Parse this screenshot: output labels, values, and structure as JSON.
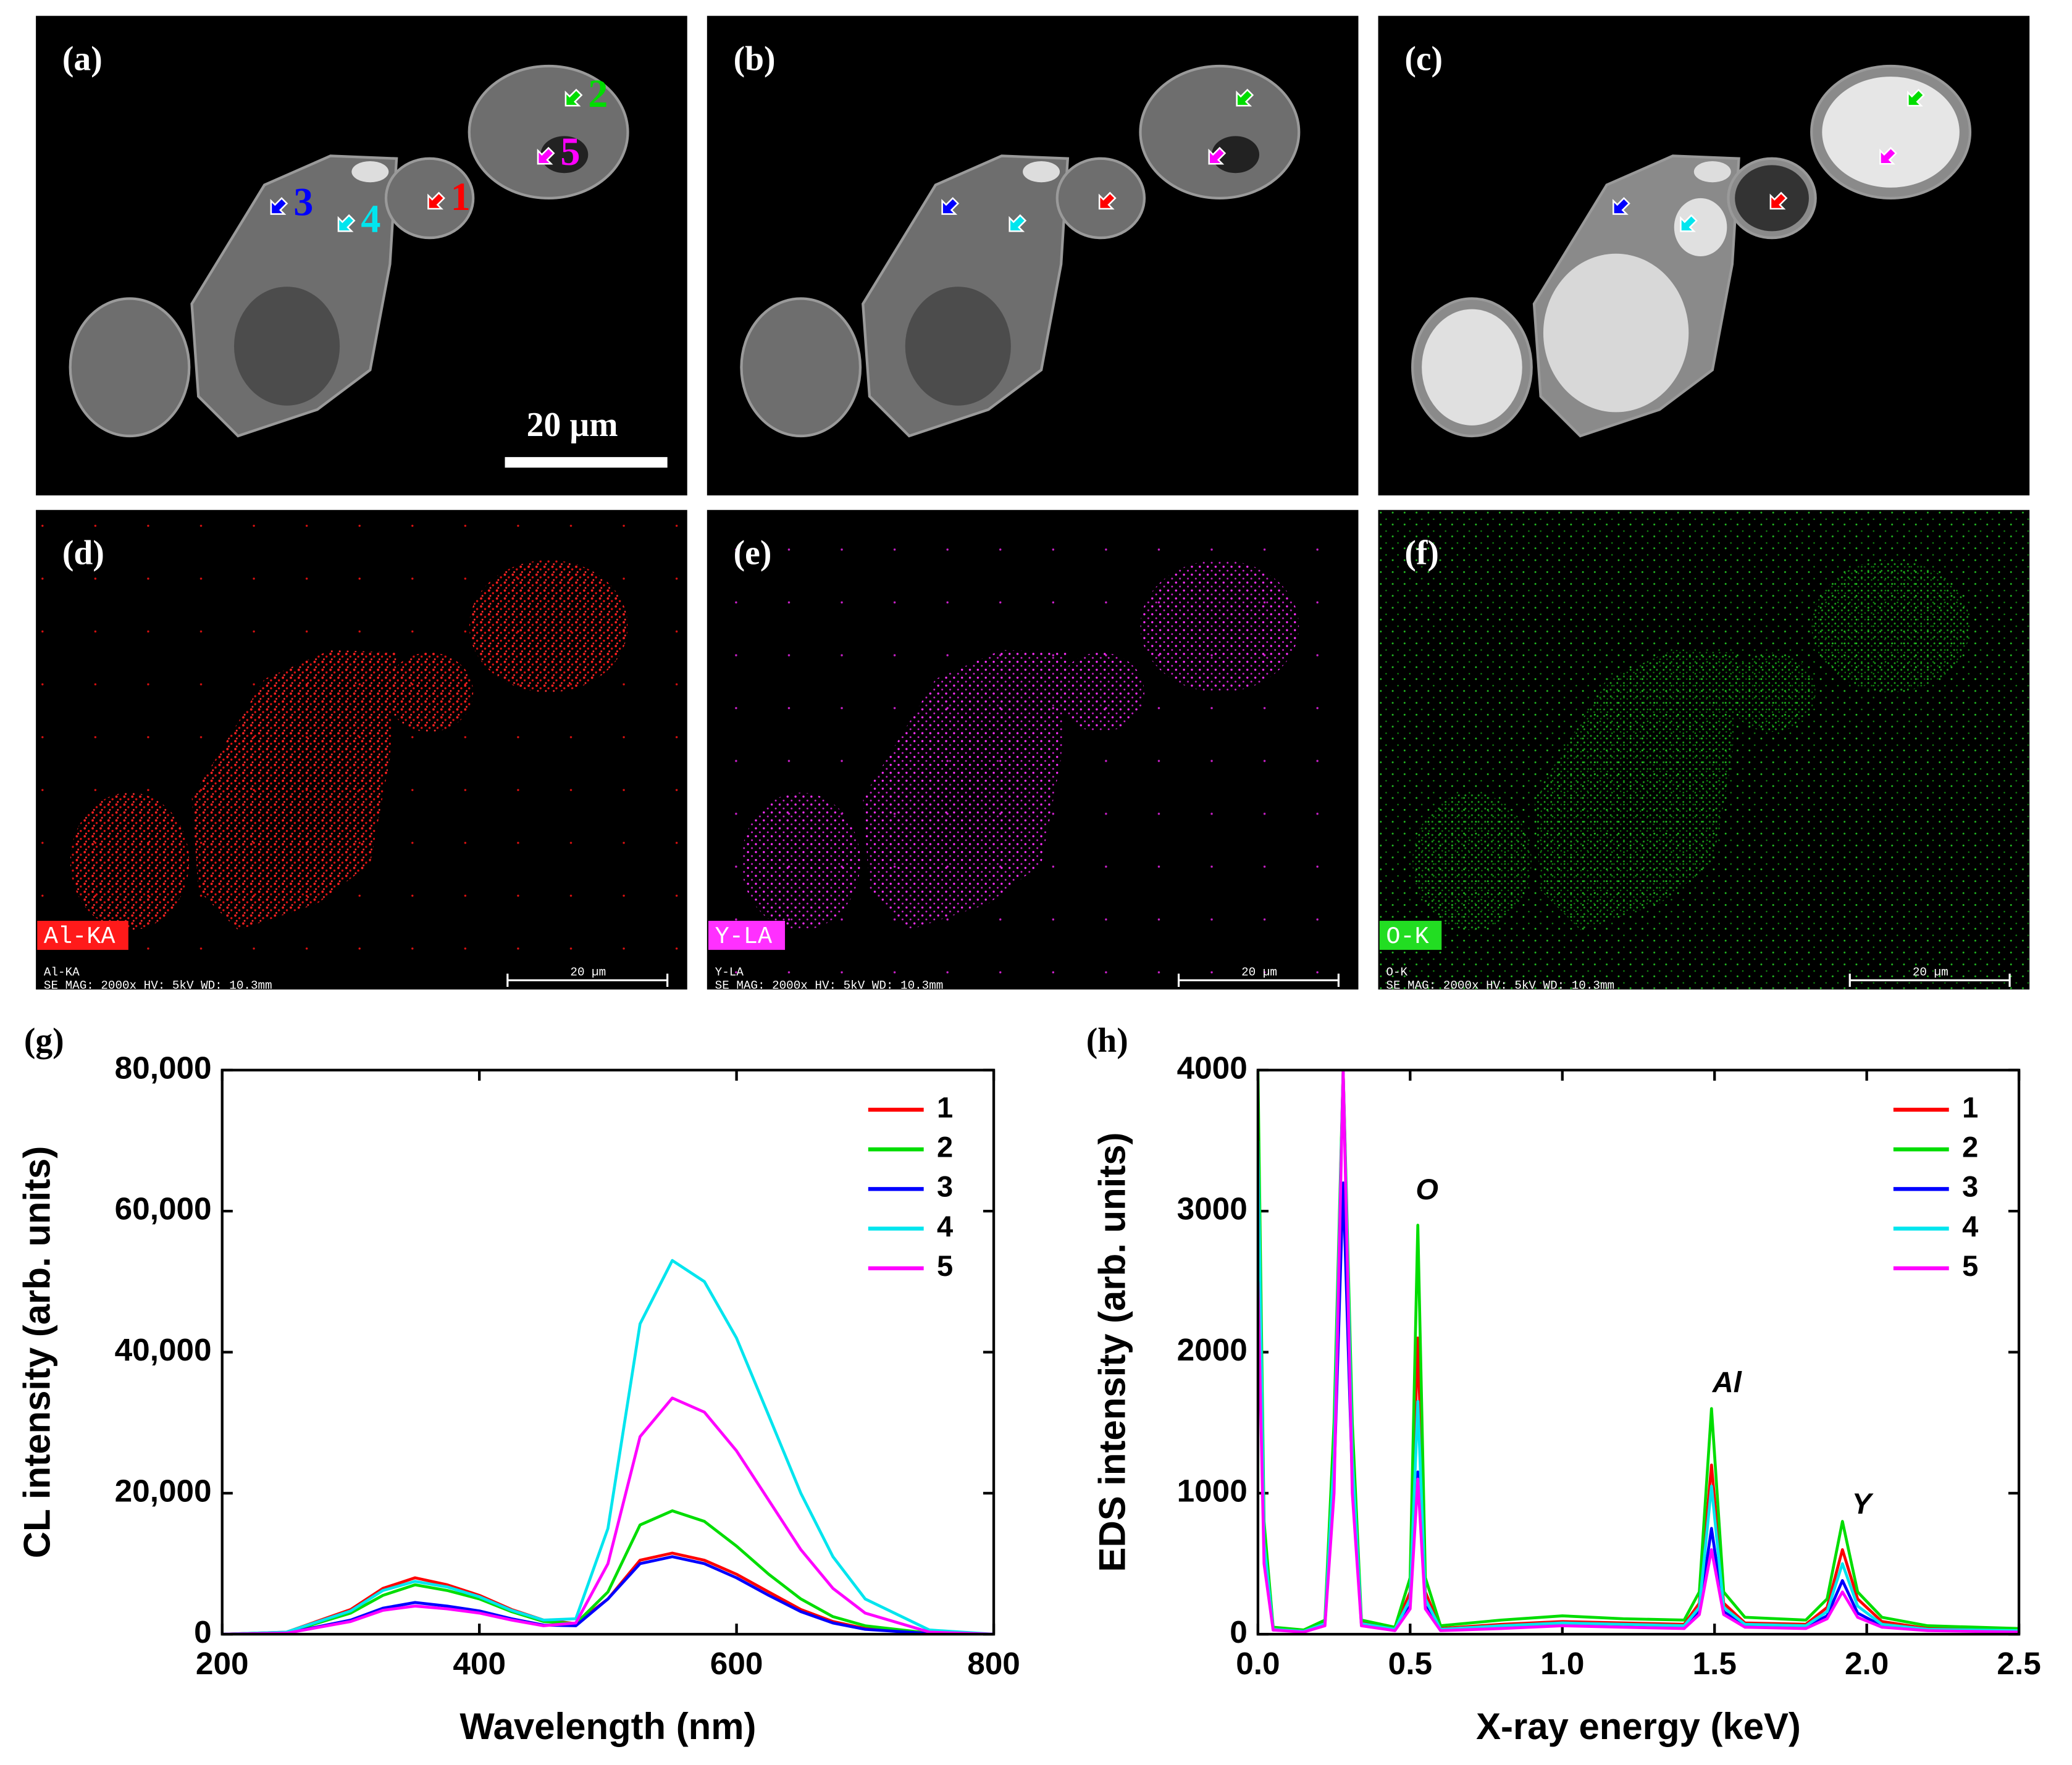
{
  "panel_labels": [
    "(a)",
    "(b)",
    "(c)",
    "(d)",
    "(e)",
    "(f)"
  ],
  "sem": {
    "scale_bar": "20 µm",
    "point_labels": [
      "1",
      "2",
      "3",
      "4",
      "5"
    ]
  },
  "eds_maps": [
    {
      "element": "Al-KA",
      "caption_line1": "Al-KA",
      "caption_line2": "SE  MAG: 2000x  HV: 5kV  WD: 10.3mm",
      "scale_bar": "20 µm",
      "color": "#ff1a1a"
    },
    {
      "element": "Y-LA",
      "caption_line1": "Y-LA",
      "caption_line2": "SE  MAG: 2000x  HV: 5kV  WD: 10.3mm",
      "scale_bar": "20 µm",
      "color": "#ff30ff"
    },
    {
      "element": "O-K",
      "caption_line1": "O-K",
      "caption_line2": "SE  MAG: 2000x  HV: 5kV  WD: 10.3mm",
      "scale_bar": "20 µm",
      "color": "#22dd22"
    }
  ],
  "chart_data": [
    {
      "type": "line",
      "panel_label": "(g)",
      "x_label": "Wavelength (nm)",
      "y_label": "CL intensity (arb. units)",
      "x": [
        200,
        250,
        300,
        325,
        350,
        375,
        400,
        425,
        450,
        475,
        500,
        525,
        550,
        575,
        600,
        625,
        650,
        675,
        700,
        750,
        800
      ],
      "series": [
        {
          "name": "1",
          "color": "#ff0000",
          "values": [
            0,
            300,
            3500,
            6500,
            8000,
            7000,
            5500,
            3500,
            2000,
            1500,
            5000,
            10500,
            11500,
            10500,
            8500,
            6000,
            3500,
            1800,
            800,
            100,
            0
          ]
        },
        {
          "name": "2",
          "color": "#00dd00",
          "values": [
            0,
            250,
            3000,
            5500,
            7000,
            6200,
            5000,
            3200,
            1800,
            1500,
            6000,
            15500,
            17500,
            16000,
            12500,
            8500,
            5000,
            2500,
            1200,
            150,
            0
          ]
        },
        {
          "name": "3",
          "color": "#0000ff",
          "values": [
            0,
            150,
            2000,
            3700,
            4500,
            4000,
            3300,
            2200,
            1300,
            1200,
            5000,
            10000,
            11000,
            10000,
            8000,
            5500,
            3200,
            1600,
            700,
            100,
            0
          ]
        },
        {
          "name": "4",
          "color": "#00e5ee",
          "values": [
            0,
            300,
            3300,
            6200,
            7500,
            6700,
            5300,
            3400,
            2000,
            2200,
            15000,
            44000,
            53000,
            50000,
            42000,
            31000,
            20000,
            11000,
            5000,
            600,
            0
          ]
        },
        {
          "name": "5",
          "color": "#ff00ff",
          "values": [
            0,
            150,
            1800,
            3400,
            4000,
            3600,
            3000,
            2000,
            1200,
            1600,
            10000,
            28000,
            33500,
            31500,
            26000,
            19000,
            12000,
            6500,
            3000,
            300,
            0
          ]
        }
      ],
      "xlim": [
        200,
        800
      ],
      "ylim": [
        0,
        80000
      ],
      "xticks": [
        200,
        400,
        600,
        800
      ],
      "yticks": [
        0,
        {
          "value": 20000,
          "label": "20,000"
        },
        {
          "value": 40000,
          "label": "40,000"
        },
        {
          "value": 60000,
          "label": "60,000"
        },
        {
          "value": 80000,
          "label": "80,000"
        }
      ],
      "legend": "upper right"
    },
    {
      "type": "line",
      "panel_label": "(h)",
      "x_label": "X-ray energy (keV)",
      "y_label": "EDS intensity (arb. units)",
      "x": [
        0,
        0.02,
        0.05,
        0.15,
        0.22,
        0.25,
        0.28,
        0.31,
        0.34,
        0.45,
        0.5,
        0.525,
        0.55,
        0.6,
        0.8,
        1.0,
        1.2,
        1.4,
        1.45,
        1.49,
        1.53,
        1.6,
        1.8,
        1.87,
        1.92,
        1.97,
        2.05,
        2.2,
        2.5
      ],
      "series": [
        {
          "name": "1",
          "color": "#ff0000",
          "values": [
            3600,
            700,
            40,
            20,
            80,
            1300,
            4000,
            1300,
            80,
            40,
            300,
            2100,
            300,
            40,
            70,
            90,
            80,
            70,
            220,
            1200,
            220,
            80,
            70,
            190,
            600,
            250,
            90,
            40,
            30
          ]
        },
        {
          "name": "2",
          "color": "#00dd00",
          "values": [
            4000,
            800,
            50,
            30,
            100,
            1500,
            4000,
            1500,
            100,
            50,
            400,
            2900,
            400,
            60,
            100,
            130,
            110,
            100,
            300,
            1600,
            300,
            120,
            100,
            250,
            800,
            300,
            120,
            60,
            40
          ]
        },
        {
          "name": "3",
          "color": "#0000ff",
          "values": [
            3300,
            600,
            30,
            20,
            70,
            1100,
            3200,
            1100,
            70,
            30,
            200,
            1150,
            200,
            30,
            50,
            70,
            60,
            50,
            160,
            750,
            160,
            60,
            50,
            130,
            380,
            150,
            60,
            30,
            20
          ]
        },
        {
          "name": "4",
          "color": "#00e5ee",
          "values": [
            3500,
            650,
            35,
            20,
            75,
            1250,
            4000,
            1250,
            75,
            35,
            250,
            1650,
            250,
            35,
            60,
            80,
            70,
            60,
            190,
            1050,
            190,
            70,
            60,
            160,
            500,
            200,
            70,
            35,
            25
          ]
        },
        {
          "name": "5",
          "color": "#ff00ff",
          "values": [
            2500,
            500,
            30,
            15,
            60,
            1000,
            4000,
            1000,
            60,
            25,
            180,
            1100,
            180,
            25,
            40,
            60,
            50,
            40,
            140,
            600,
            140,
            50,
            40,
            110,
            300,
            120,
            50,
            25,
            15
          ]
        }
      ],
      "xlim": [
        0,
        2.5
      ],
      "ylim": [
        0,
        4000
      ],
      "xticks": [
        {
          "value": 0,
          "label": "0.0"
        },
        {
          "value": 0.5,
          "label": "0.5"
        },
        {
          "value": 1,
          "label": "1.0"
        },
        {
          "value": 1.5,
          "label": "1.5"
        },
        {
          "value": 2,
          "label": "2.0"
        },
        {
          "value": 2.5,
          "label": "2.5"
        }
      ],
      "yticks": [
        0,
        1000,
        2000,
        3000,
        4000
      ],
      "annotations": [
        "O",
        "Al",
        "Y"
      ],
      "legend": "upper right"
    }
  ]
}
